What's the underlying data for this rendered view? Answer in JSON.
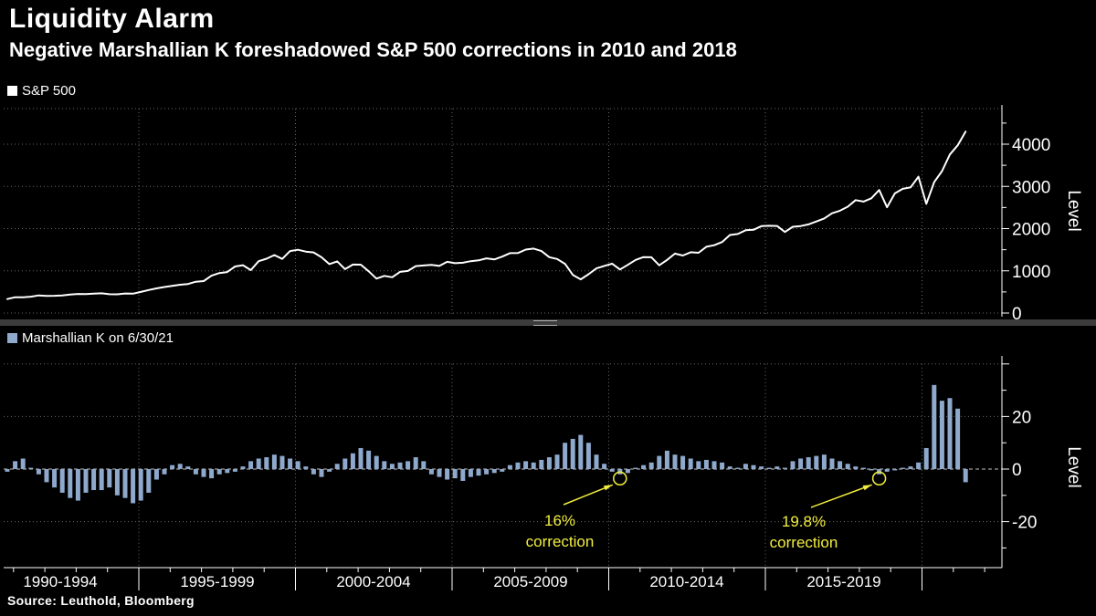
{
  "header": {
    "title": "Liquidity Alarm",
    "subtitle": "Negative Marshallian K foreshadowed S&P 500 corrections in 2010 and 2018"
  },
  "source_line": "Source: Leuthold, Bloomberg",
  "colors": {
    "background": "#000000",
    "text": "#ffffff",
    "spx_line": "#ffffff",
    "bar_fill": "#8ea9cc",
    "grid": "#7d7d7d",
    "zero_line": "#d8d8d8",
    "axis": "#ffffff",
    "annotation": "#f2ee3e",
    "divider": "#3c3c3c",
    "divider_handle": "#b2b2b2"
  },
  "top_panel": {
    "legend": {
      "label": "S&P 500",
      "swatch_color": "#ffffff"
    },
    "axis_label": "Level"
  },
  "bottom_panel": {
    "legend": {
      "label": "Marshallian K on 6/30/21",
      "swatch_color": "#8ea9cc"
    },
    "axis_label": "Level"
  },
  "xaxis": {
    "labels": [
      "1990-1994",
      "1995-1999",
      "2000-2004",
      "2005-2009",
      "2010-2014",
      "2015-2019"
    ]
  },
  "chart_data": [
    {
      "type": "line",
      "title": "S&P 500",
      "x_start": "1990-Q4",
      "x_step_years": 0.25,
      "ylabel": "Level",
      "ylim": [
        0,
        4850
      ],
      "yticks": [
        0,
        1000,
        2000,
        3000,
        4000
      ],
      "grid": true,
      "legend_position": "top-left",
      "values": [
        330,
        375,
        371,
        387,
        417,
        404,
        408,
        418,
        436,
        452,
        450,
        459,
        466,
        446,
        444,
        462,
        459,
        500,
        544,
        584,
        616,
        645,
        671,
        687,
        741,
        757,
        885,
        947,
        970,
        1102,
        1133,
        1017,
        1229,
        1286,
        1373,
        1283,
        1469,
        1499,
        1455,
        1436,
        1320,
        1160,
        1224,
        1041,
        1148,
        1147,
        990,
        815,
        880,
        848,
        975,
        996,
        1112,
        1126,
        1141,
        1115,
        1212,
        1181,
        1191,
        1229,
        1248,
        1295,
        1270,
        1336,
        1418,
        1421,
        1503,
        1527,
        1468,
        1323,
        1280,
        1166,
        903,
        798,
        919,
        1057,
        1115,
        1169,
        1031,
        1141,
        1258,
        1326,
        1321,
        1131,
        1258,
        1408,
        1362,
        1441,
        1426,
        1569,
        1606,
        1682,
        1848,
        1872,
        1960,
        1972,
        2059,
        2068,
        2063,
        1920,
        2044,
        2060,
        2099,
        2168,
        2239,
        2363,
        2423,
        2519,
        2674,
        2641,
        2718,
        2914,
        2507,
        2834,
        2942,
        2977,
        3231,
        2585,
        3100,
        3363,
        3756,
        3973,
        4298
      ]
    },
    {
      "type": "bar",
      "title": "Marshallian K on 6/30/21",
      "x_start": "1990-Q4",
      "x_step_years": 0.25,
      "ylabel": "Level",
      "ylim": [
        -37,
        43
      ],
      "yticks": [
        -20,
        0,
        20
      ],
      "grid": true,
      "legend_position": "top-left",
      "values": [
        -1,
        3,
        4,
        0.5,
        -2,
        -5,
        -7,
        -9,
        -11,
        -12,
        -9,
        -8,
        -8,
        -7,
        -10,
        -11,
        -13,
        -12,
        -9,
        -4,
        -2,
        1.5,
        2,
        1,
        -2,
        -3,
        -3.5,
        -2,
        -1.5,
        -1,
        1,
        3,
        4,
        4.5,
        5.5,
        5,
        4,
        3,
        1,
        -2,
        -3,
        -1,
        2,
        4,
        6,
        8,
        7,
        5,
        3,
        2,
        2.5,
        3,
        4.5,
        3,
        -2,
        -3,
        -4,
        -3.5,
        -4.5,
        -3,
        -2.5,
        -2,
        -1.5,
        -1,
        1.5,
        2.5,
        3,
        2.5,
        3.5,
        4.5,
        5.5,
        10,
        11.5,
        13,
        10,
        5.5,
        2,
        -1,
        -2,
        -1.5,
        0.5,
        1.5,
        2.5,
        5,
        7,
        5.5,
        5,
        4,
        3,
        3.5,
        3,
        2.5,
        1,
        0.5,
        2,
        1.5,
        1,
        0.5,
        1,
        0.5,
        3,
        4,
        4.5,
        5,
        5.5,
        4,
        3,
        2,
        1,
        0.5,
        -0.5,
        -2,
        -1,
        -0.5,
        0.5,
        1,
        2.5,
        8,
        32,
        26,
        27,
        23,
        -5
      ]
    }
  ],
  "annotations": [
    {
      "target": "bar-index",
      "index": 78,
      "line1": "16%",
      "line2": "correction"
    },
    {
      "target": "bar-index",
      "index": 111,
      "line1": "19.8%",
      "line2": "correction"
    }
  ]
}
